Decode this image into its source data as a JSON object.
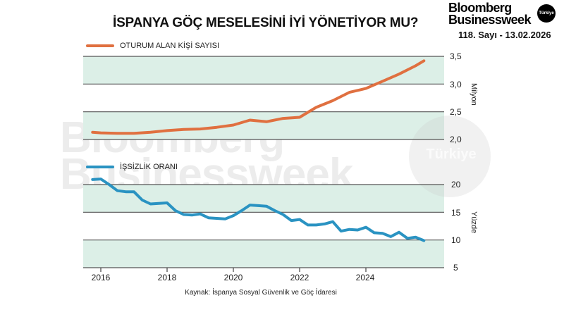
{
  "header": {
    "title": "İSPANYA GÖÇ MESELESİNİ İYİ YÖNETİYOR MU?",
    "brand_line1": "Bloomberg",
    "brand_line2": "Businessweek",
    "brand_badge": "Türkiye",
    "issue": "118. Sayı - 13.02.2026"
  },
  "watermark": {
    "line1": "Bloomberg",
    "line2": "Businessweek",
    "badge": "Türkiye"
  },
  "colors": {
    "residents_line": "#e07040",
    "unemployment_line": "#2a93c2",
    "band": "#dcefe7",
    "gridline": "#555555"
  },
  "upper_axis": {
    "unit": "Milyon",
    "ticks": [
      "3,5",
      "3,0",
      "2,5",
      "2,0"
    ]
  },
  "lower_axis": {
    "unit": "Yüzde",
    "ticks": [
      "20",
      "15",
      "10",
      "5"
    ]
  },
  "x_axis": {
    "ticks": [
      "2016",
      "2018",
      "2020",
      "2022",
      "2024"
    ]
  },
  "source": "Kaynak: İspanya Sosyal Güvenlik ve Göç İdaresi",
  "chart_data": [
    {
      "type": "line",
      "title": "İSPANYA GÖÇ MESELESİNİ İYİ YÖNETİYOR MU?",
      "series": [
        {
          "name": "OTURUM ALAN KİŞİ SAYISI",
          "x": [
            2015.75,
            2016.0,
            2016.5,
            2017.0,
            2017.5,
            2018.0,
            2018.5,
            2019.0,
            2019.5,
            2020.0,
            2020.5,
            2021.0,
            2021.5,
            2022.0,
            2022.5,
            2023.0,
            2023.5,
            2024.0,
            2024.5,
            2025.0,
            2025.5,
            2025.75
          ],
          "values": [
            2.13,
            2.12,
            2.11,
            2.11,
            2.13,
            2.16,
            2.18,
            2.19,
            2.22,
            2.26,
            2.35,
            2.32,
            2.38,
            2.4,
            2.58,
            2.7,
            2.85,
            2.92,
            3.05,
            3.18,
            3.33,
            3.42
          ]
        }
      ],
      "ylabel": "Milyon",
      "ylim": [
        2.0,
        3.5
      ],
      "yticks": [
        2.0,
        2.5,
        3.0,
        3.5
      ],
      "xlabel": "",
      "xticks": [
        2016,
        2018,
        2020,
        2022,
        2024
      ],
      "grid": true,
      "legend_position": "top-left"
    },
    {
      "type": "line",
      "series": [
        {
          "name": "İŞSİZLİK ORANI",
          "x": [
            2015.75,
            2016.0,
            2016.25,
            2016.5,
            2016.75,
            2017.0,
            2017.25,
            2017.5,
            2017.75,
            2018.0,
            2018.25,
            2018.5,
            2018.75,
            2019.0,
            2019.25,
            2019.5,
            2019.75,
            2020.0,
            2020.25,
            2020.5,
            2020.75,
            2021.0,
            2021.25,
            2021.5,
            2021.75,
            2022.0,
            2022.25,
            2022.5,
            2022.75,
            2023.0,
            2023.25,
            2023.5,
            2023.75,
            2024.0,
            2024.25,
            2024.5,
            2024.75,
            2025.0,
            2025.25,
            2025.5,
            2025.75
          ],
          "values": [
            20.9,
            21.0,
            20.0,
            18.9,
            18.7,
            18.7,
            17.2,
            16.5,
            16.6,
            16.7,
            15.3,
            14.6,
            14.5,
            14.7,
            14.0,
            13.9,
            13.8,
            14.4,
            15.3,
            16.3,
            16.2,
            16.1,
            15.3,
            14.6,
            13.5,
            13.7,
            12.7,
            12.7,
            12.9,
            13.3,
            11.6,
            11.9,
            11.8,
            12.3,
            11.3,
            11.2,
            10.6,
            11.4,
            10.3,
            10.5,
            9.9
          ]
        }
      ],
      "ylabel": "Yüzde",
      "ylim": [
        5,
        20
      ],
      "yticks": [
        5,
        10,
        15,
        20
      ],
      "xlabel": "",
      "xticks": [
        2016,
        2018,
        2020,
        2022,
        2024
      ],
      "grid": true,
      "legend_position": "top-left"
    }
  ]
}
